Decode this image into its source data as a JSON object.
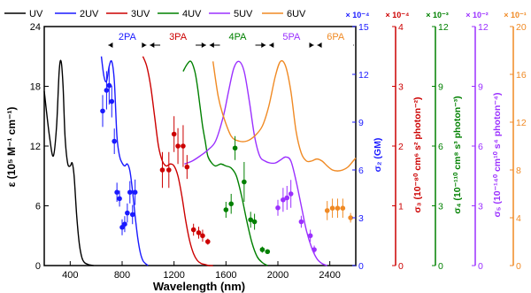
{
  "chart_data": {
    "type": "line",
    "title": "",
    "xlabel": "Wavelength (nm)",
    "ylabel": "ε (10⁵ M⁻¹ cm⁻¹)",
    "xlim": [
      200,
      2600
    ],
    "ylim": [
      0,
      24
    ],
    "x_ticks": [
      400,
      800,
      1200,
      1600,
      2000,
      2400
    ],
    "y_ticks": [
      0,
      6,
      12,
      18,
      24
    ],
    "grid": false,
    "legend": {
      "placement": "top",
      "entries": [
        "UV",
        "2UV",
        "3UV",
        "4UV",
        "5UV",
        "6UV"
      ]
    },
    "colors": {
      "UV": "#000000",
      "2UV": "#1a1aff",
      "3UV": "#cc0000",
      "4UV": "#008000",
      "5UV": "#9b30ff",
      "6UV": "#f08a24"
    },
    "regions": [
      {
        "label": "2PA",
        "from": 680,
        "to": 1000,
        "color": "#1a1aff"
      },
      {
        "label": "3PA",
        "from": 1000,
        "to": 1460,
        "color": "#cc0000"
      },
      {
        "label": "4PA",
        "from": 1460,
        "to": 1920,
        "color": "#008000"
      },
      {
        "label": "5PA",
        "from": 1920,
        "to": 2290,
        "color": "#9b30ff"
      },
      {
        "label": "6PA",
        "from": 2290,
        "to": 2600,
        "color": "#f08a24"
      }
    ],
    "right_axes": [
      {
        "label": "σ₂ (GM)",
        "multiplier": "× 10⁻⁴",
        "ticks": [
          0,
          3,
          6,
          9,
          12,
          15
        ],
        "max": 15,
        "color": "#1a1aff"
      },
      {
        "label": "σ₃ (10⁻⁸⁰ cm⁶ s² photon⁻²)",
        "multiplier": "× 10⁻⁴",
        "ticks": [
          0,
          1,
          2,
          3,
          4
        ],
        "max": 4,
        "color": "#cc0000"
      },
      {
        "label": "σ₄ (10⁻¹¹⁰ cm⁸ s³ photon⁻³)",
        "multiplier": "× 10⁻³",
        "ticks": [
          0,
          3,
          6,
          9,
          12
        ],
        "max": 12,
        "color": "#008000"
      },
      {
        "label": "σ₅ (10⁻¹⁴⁰ cm¹⁰ s⁴ photon⁻⁴)",
        "multiplier": "× 10⁻²",
        "ticks": [
          0,
          3,
          6,
          9,
          12
        ],
        "max": 12,
        "color": "#9b30ff"
      },
      {
        "label": "σ₆ (10⁻¹⁷⁰ cm¹² s⁵ photon⁻⁵)",
        "multiplier": "× 10⁻¹",
        "ticks": [
          0,
          4,
          8,
          12,
          16,
          20
        ],
        "max": 20,
        "color": "#f08a24"
      }
    ],
    "series": [
      {
        "name": "UV",
        "kind": "line",
        "x": [
          200,
          240,
          270,
          295,
          315,
          330,
          345,
          360,
          380,
          400,
          415,
          430,
          450,
          470,
          490,
          510,
          540,
          580
        ],
        "y": [
          17.5,
          13,
          11,
          14,
          19.5,
          20.5,
          18,
          13,
          10.3,
          10,
          10.3,
          9,
          5,
          2.2,
          0.8,
          0.3,
          0.1,
          0
        ]
      },
      {
        "name": "2UV",
        "kind": "line",
        "x": [
          640,
          660,
          680,
          700,
          720,
          740,
          760,
          780,
          800,
          820,
          840,
          860,
          880,
          900,
          920,
          940,
          960,
          980,
          1000
        ],
        "y": [
          21,
          19,
          18.5,
          20,
          20.5,
          18.5,
          13,
          11,
          10.3,
          10,
          10.2,
          9.5,
          7.5,
          5,
          2.8,
          1.3,
          0.5,
          0.2,
          0
        ]
      },
      {
        "name": "3UV",
        "kind": "line",
        "x": [
          960,
          990,
          1020,
          1050,
          1080,
          1110,
          1140,
          1170,
          1200,
          1230,
          1260,
          1290,
          1320,
          1350,
          1380,
          1410,
          1440,
          1470,
          1500
        ],
        "y": [
          21,
          20,
          18,
          15,
          12,
          10.5,
          10,
          10.2,
          10,
          9,
          7,
          4.5,
          2.5,
          1.2,
          0.5,
          0.2,
          0.1,
          0,
          0
        ]
      },
      {
        "name": "4UV",
        "kind": "line",
        "x": [
          1270,
          1300,
          1330,
          1360,
          1380,
          1400,
          1420,
          1440,
          1460,
          1490,
          1520,
          1560,
          1600,
          1640,
          1680,
          1720,
          1760,
          1800,
          1840,
          1880,
          1920
        ],
        "y": [
          19.5,
          20.2,
          20.5,
          19.5,
          18,
          16,
          14,
          12.5,
          11,
          10.3,
          10,
          10.2,
          10,
          9.8,
          9,
          7,
          4.5,
          2.3,
          0.9,
          0.3,
          0
        ]
      },
      {
        "name": "5UV",
        "kind": "line",
        "x": [
          1280,
          1340,
          1400,
          1460,
          1520,
          1580,
          1620,
          1660,
          1700,
          1740,
          1780,
          1820,
          1860,
          1900,
          1940,
          1980,
          2020,
          2060,
          2100,
          2140,
          2180,
          2220,
          2260,
          2300,
          2340,
          2380
        ],
        "y": [
          10.2,
          10.5,
          11,
          11.6,
          12.5,
          15,
          17.5,
          19.8,
          20.5,
          19.5,
          16.5,
          13,
          11,
          10.5,
          10.3,
          10.3,
          10.6,
          10.9,
          10.5,
          8.5,
          6,
          3.5,
          1.8,
          0.7,
          0.2,
          0
        ]
      },
      {
        "name": "6UV",
        "kind": "line",
        "x": [
          1500,
          1540,
          1580,
          1640,
          1700,
          1760,
          1820,
          1880,
          1930,
          1980,
          2020,
          2060,
          2100,
          2140,
          2180,
          2220,
          2260,
          2300,
          2340,
          2380,
          2420,
          2460,
          2500,
          2540,
          2580,
          2600
        ],
        "y": [
          20.5,
          17,
          15,
          13,
          12.5,
          12.5,
          13,
          14,
          16,
          19,
          20.5,
          20,
          17.5,
          13.5,
          11.3,
          10.5,
          10.5,
          10.7,
          10.5,
          10,
          9.6,
          9.5,
          9.6,
          9.9,
          10.5,
          10.8
        ]
      },
      {
        "name": "2PA",
        "kind": "points",
        "axis": 0,
        "x": [
          650,
          680,
          700,
          720,
          740,
          760,
          780,
          800,
          820,
          840,
          860,
          880,
          900
        ],
        "y": [
          9.7,
          11,
          11.3,
          10.3,
          7.8,
          4.6,
          4.2,
          2.4,
          2.6,
          3.3,
          4.6,
          3.2,
          4.6
        ],
        "err": [
          1,
          1.2,
          1.2,
          1,
          0.8,
          0.6,
          0.5,
          0.5,
          0.5,
          0.6,
          0.7,
          0.6,
          0.8
        ]
      },
      {
        "name": "3PA",
        "kind": "points",
        "axis": 1,
        "x": [
          1110,
          1160,
          1200,
          1230,
          1270,
          1300,
          1350,
          1390,
          1420,
          1460
        ],
        "y": [
          1.6,
          1.6,
          2.2,
          2.0,
          2.0,
          1.65,
          0.6,
          0.55,
          0.5,
          0.4
        ],
        "err": [
          0.3,
          0.3,
          0.3,
          0.3,
          0.35,
          0.2,
          0.1,
          0.1,
          0.1,
          0.05
        ]
      },
      {
        "name": "4PA",
        "kind": "points",
        "axis": 2,
        "x": [
          1600,
          1640,
          1670,
          1740,
          1790,
          1820,
          1880,
          1920
        ],
        "y": [
          2.8,
          3.1,
          5.9,
          4.2,
          2.3,
          2.2,
          0.8,
          0.7
        ],
        "err": [
          0.4,
          0.5,
          0.6,
          1,
          0.4,
          0.4,
          0.15,
          0.1
        ]
      },
      {
        "name": "5PA",
        "kind": "points",
        "axis": 3,
        "x": [
          2000,
          2040,
          2070,
          2100,
          2180,
          2250,
          2280
        ],
        "y": [
          2.9,
          3.3,
          3.4,
          3.6,
          2.2,
          1.5,
          0.8
        ],
        "err": [
          0.4,
          0.6,
          0.6,
          0.7,
          0.3,
          0.3,
          0.2
        ]
      },
      {
        "name": "6PA",
        "kind": "points",
        "axis": 4,
        "x": [
          2380,
          2420,
          2460,
          2500,
          2560
        ],
        "y": [
          4.6,
          4.8,
          4.8,
          4.8,
          4.0
        ],
        "err": [
          0.8,
          0.8,
          0.8,
          0.8,
          0.4
        ]
      }
    ]
  }
}
